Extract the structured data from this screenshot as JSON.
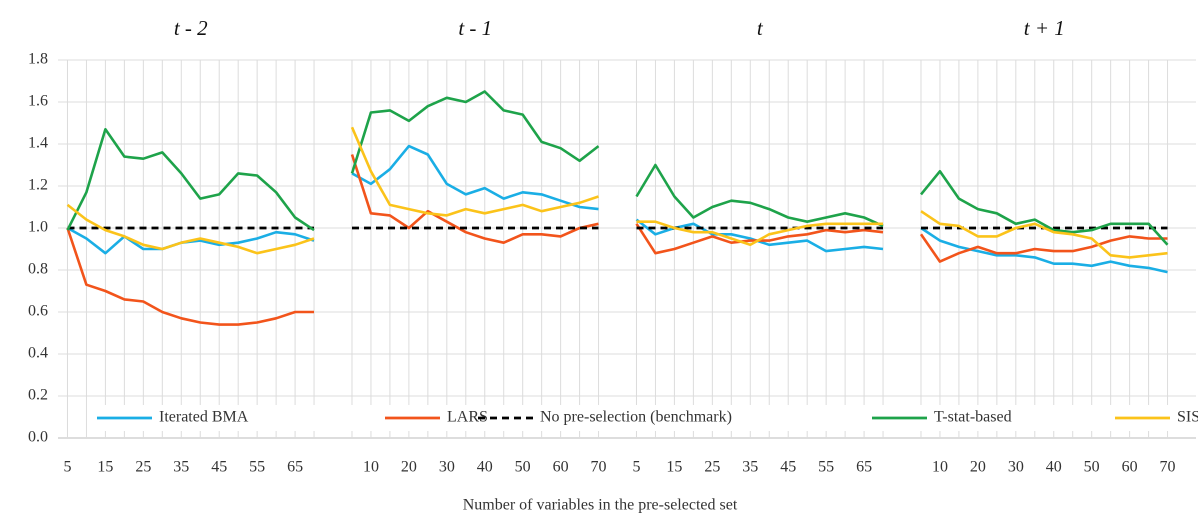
{
  "chart_data": {
    "type": "line",
    "xlabel": "Number of variables in the pre-selected set",
    "ylim": [
      0,
      1.8
    ],
    "yticks": [
      {
        "value": 0,
        "label": "0.0"
      },
      0.2,
      0.4,
      0.6,
      0.8,
      {
        "value": 1,
        "label": "1.0"
      },
      1.2,
      1.4,
      1.6,
      1.8
    ],
    "grid": true,
    "legend": "bottom",
    "panels": [
      {
        "title": "t - 2",
        "categories": [
          5,
          null,
          15,
          null,
          25,
          null,
          35,
          null,
          45,
          null,
          55,
          null,
          65,
          null
        ]
      },
      {
        "title": "t - 1",
        "categories": [
          null,
          10,
          null,
          20,
          null,
          30,
          null,
          40,
          null,
          50,
          null,
          60,
          null,
          70
        ]
      },
      {
        "title": "t",
        "categories": [
          5,
          null,
          15,
          null,
          25,
          null,
          35,
          null,
          45,
          null,
          55,
          null,
          65,
          null
        ]
      },
      {
        "title": "t + 1",
        "categories": [
          null,
          10,
          null,
          20,
          null,
          30,
          null,
          40,
          null,
          50,
          null,
          60,
          null,
          70
        ]
      }
    ],
    "series": [
      {
        "name": "Iterated BMA",
        "color": "#1aaee5",
        "values": [
          [
            1.0,
            0.95,
            0.88,
            0.96,
            0.9,
            0.9,
            0.93,
            0.94,
            0.92,
            0.93,
            0.95,
            0.98,
            0.97,
            0.94
          ],
          [
            1.26,
            1.21,
            1.28,
            1.39,
            1.35,
            1.21,
            1.16,
            1.19,
            1.14,
            1.17,
            1.16,
            1.13,
            1.1,
            1.09
          ],
          [
            1.04,
            0.97,
            1.0,
            1.02,
            0.97,
            0.97,
            0.95,
            0.92,
            0.93,
            0.94,
            0.89,
            0.9,
            0.91,
            0.9
          ],
          [
            1.0,
            0.94,
            0.91,
            0.89,
            0.87,
            0.87,
            0.86,
            0.83,
            0.83,
            0.82,
            0.84,
            0.82,
            0.81,
            0.79
          ]
        ]
      },
      {
        "name": "LARS",
        "color": "#f2541b",
        "values": [
          [
            1.0,
            0.73,
            0.7,
            0.66,
            0.65,
            0.6,
            0.57,
            0.55,
            0.54,
            0.54,
            0.55,
            0.57,
            0.6,
            0.6
          ],
          [
            1.35,
            1.07,
            1.06,
            1.0,
            1.08,
            1.03,
            0.98,
            0.95,
            0.93,
            0.97,
            0.97,
            0.96,
            1.0,
            1.02
          ],
          [
            1.02,
            0.88,
            0.9,
            0.93,
            0.96,
            0.93,
            0.94,
            0.94,
            0.96,
            0.97,
            0.99,
            0.98,
            0.99,
            0.98
          ],
          [
            0.97,
            0.84,
            0.88,
            0.91,
            0.88,
            0.88,
            0.9,
            0.89,
            0.89,
            0.91,
            0.94,
            0.96,
            0.95,
            0.95
          ]
        ]
      },
      {
        "name": "No pre-selection (benchmark)",
        "color": "#000000",
        "dashed": true,
        "values": [
          [
            1,
            1,
            1,
            1,
            1,
            1,
            1,
            1,
            1,
            1,
            1,
            1,
            1,
            1
          ],
          [
            1,
            1,
            1,
            1,
            1,
            1,
            1,
            1,
            1,
            1,
            1,
            1,
            1,
            1
          ],
          [
            1,
            1,
            1,
            1,
            1,
            1,
            1,
            1,
            1,
            1,
            1,
            1,
            1,
            1
          ],
          [
            1,
            1,
            1,
            1,
            1,
            1,
            1,
            1,
            1,
            1,
            1,
            1,
            1,
            1
          ]
        ]
      },
      {
        "name": "T-stat-based",
        "color": "#1ea34a",
        "values": [
          [
            0.99,
            1.17,
            1.47,
            1.34,
            1.33,
            1.36,
            1.26,
            1.14,
            1.16,
            1.26,
            1.25,
            1.17,
            1.05,
            0.99
          ],
          [
            1.26,
            1.55,
            1.56,
            1.51,
            1.58,
            1.62,
            1.6,
            1.65,
            1.56,
            1.54,
            1.41,
            1.38,
            1.32,
            1.39
          ],
          [
            1.15,
            1.3,
            1.15,
            1.05,
            1.1,
            1.13,
            1.12,
            1.09,
            1.05,
            1.03,
            1.05,
            1.07,
            1.05,
            1.01
          ],
          [
            1.16,
            1.27,
            1.14,
            1.09,
            1.07,
            1.02,
            1.04,
            0.99,
            0.98,
            0.99,
            1.02,
            1.02,
            1.02,
            0.92
          ]
        ]
      },
      {
        "name": "SIS",
        "color": "#fbc31a",
        "values": [
          [
            1.11,
            1.04,
            0.99,
            0.96,
            0.92,
            0.9,
            0.93,
            0.95,
            0.93,
            0.91,
            0.88,
            0.9,
            0.92,
            0.95
          ],
          [
            1.48,
            1.27,
            1.11,
            1.09,
            1.07,
            1.06,
            1.09,
            1.07,
            1.09,
            1.11,
            1.08,
            1.1,
            1.12,
            1.15
          ],
          [
            1.03,
            1.03,
            1.0,
            0.98,
            0.98,
            0.95,
            0.92,
            0.97,
            0.99,
            1.01,
            1.02,
            1.02,
            1.02,
            1.02
          ],
          [
            1.08,
            1.02,
            1.01,
            0.96,
            0.96,
            1.0,
            1.02,
            0.98,
            0.97,
            0.95,
            0.87,
            0.86,
            0.87,
            0.88
          ]
        ]
      }
    ]
  }
}
